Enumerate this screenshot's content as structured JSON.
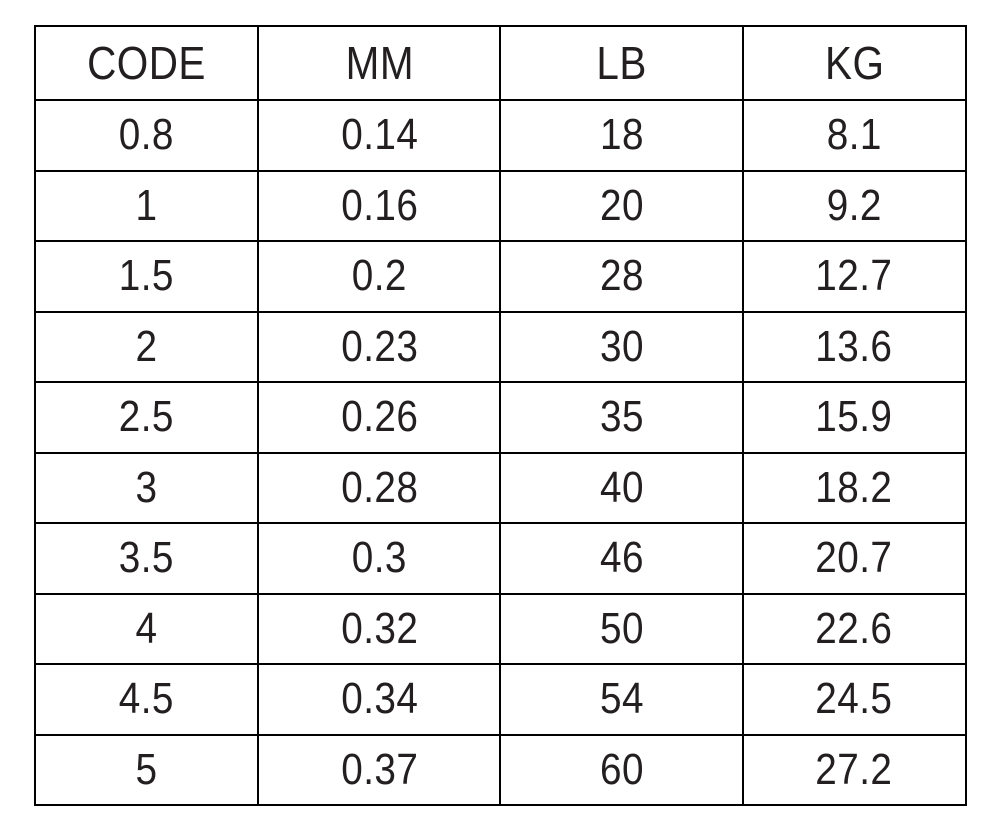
{
  "colors": {
    "background": "#ffffff",
    "border": "#000000",
    "text": "#231f20"
  },
  "table": {
    "columns": [
      "CODE",
      "MM",
      "LB",
      "KG"
    ],
    "rows": [
      [
        "0.8",
        "0.14",
        "18",
        "8.1"
      ],
      [
        "1",
        "0.16",
        "20",
        "9.2"
      ],
      [
        "1.5",
        "0.2",
        "28",
        "12.7"
      ],
      [
        "2",
        "0.23",
        "30",
        "13.6"
      ],
      [
        "2.5",
        "0.26",
        "35",
        "15.9"
      ],
      [
        "3",
        "0.28",
        "40",
        "18.2"
      ],
      [
        "3.5",
        "0.3",
        "46",
        "20.7"
      ],
      [
        "4",
        "0.32",
        "50",
        "22.6"
      ],
      [
        "4.5",
        "0.34",
        "54",
        "24.5"
      ],
      [
        "5",
        "0.37",
        "60",
        "27.2"
      ]
    ]
  },
  "chart_data": {
    "type": "table",
    "title": "",
    "columns": [
      "CODE",
      "MM",
      "LB",
      "KG"
    ],
    "rows": [
      [
        0.8,
        0.14,
        18,
        8.1
      ],
      [
        1,
        0.16,
        20,
        9.2
      ],
      [
        1.5,
        0.2,
        28,
        12.7
      ],
      [
        2,
        0.23,
        30,
        13.6
      ],
      [
        2.5,
        0.26,
        35,
        15.9
      ],
      [
        3,
        0.28,
        40,
        18.2
      ],
      [
        3.5,
        0.3,
        46,
        20.7
      ],
      [
        4,
        0.32,
        50,
        22.6
      ],
      [
        4.5,
        0.34,
        54,
        24.5
      ],
      [
        5,
        0.37,
        60,
        27.2
      ]
    ]
  }
}
